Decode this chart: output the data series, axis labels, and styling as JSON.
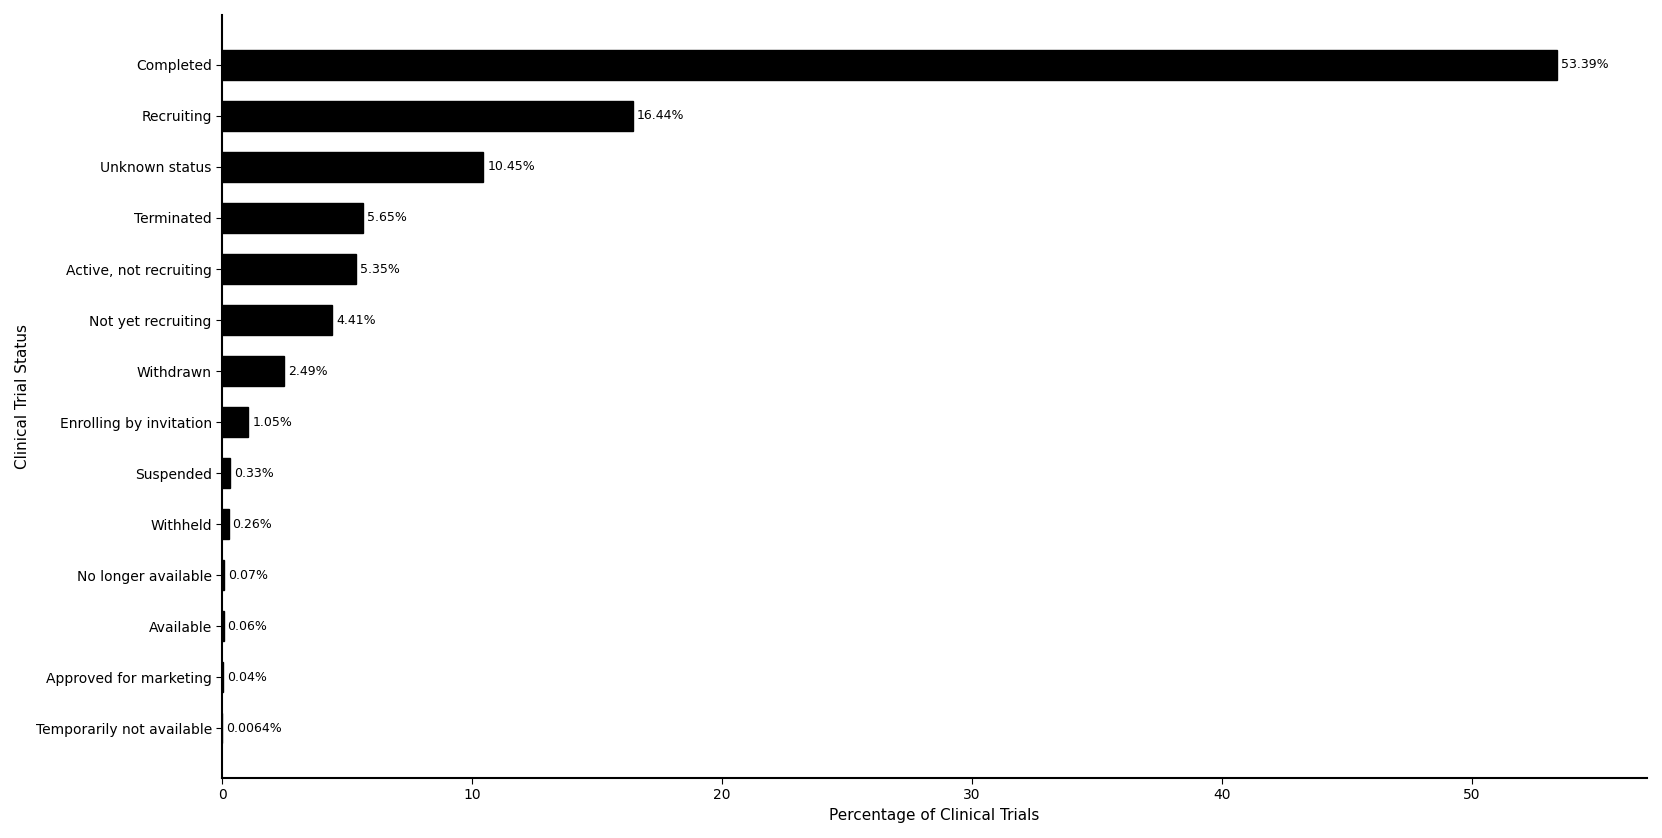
{
  "categories": [
    "Completed",
    "Recruiting",
    "Unknown status",
    "Terminated",
    "Active, not recruiting",
    "Not yet recruiting",
    "Withdrawn",
    "Enrolling by invitation",
    "Suspended",
    "Withheld",
    "No longer available",
    "Available",
    "Approved for marketing",
    "Temporarily not available"
  ],
  "values": [
    53.39,
    16.44,
    10.45,
    5.65,
    5.35,
    4.41,
    2.49,
    1.05,
    0.33,
    0.26,
    0.07,
    0.06,
    0.04,
    0.0064
  ],
  "labels": [
    "53.39%",
    "16.44%",
    "10.45%",
    "5.65%",
    "5.35%",
    "4.41%",
    "2.49%",
    "1.05%",
    "0.33%",
    "0.26%",
    "0.07%",
    "0.06%",
    "0.04%",
    "0.0064%"
  ],
  "bar_color": "#000000",
  "xlabel": "Percentage of Clinical Trials",
  "ylabel": "Clinical Trial Status",
  "xlim": [
    0,
    57
  ],
  "background_color": "#ffffff",
  "label_fontsize": 9,
  "axis_label_fontsize": 11,
  "tick_fontsize": 10
}
